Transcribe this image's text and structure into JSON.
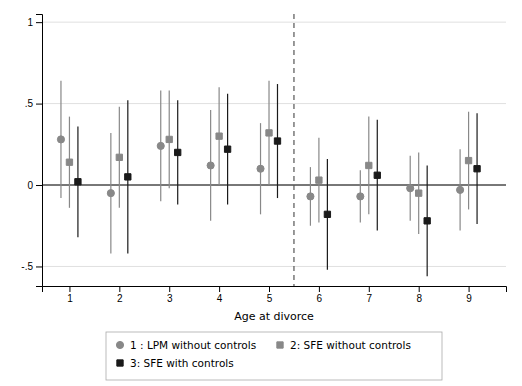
{
  "chart_data": {
    "type": "errorbar",
    "xlabel": "Age at divorce",
    "x": [
      1,
      2,
      3,
      4,
      5,
      6,
      7,
      8,
      9
    ],
    "xlim": [
      0.45,
      9.75
    ],
    "xticks": [
      1,
      2,
      3,
      4,
      5,
      6,
      7,
      8,
      9
    ],
    "ylim": [
      -0.62,
      1.05
    ],
    "yticks": [
      {
        "value": -0.5,
        "label": "-.5"
      },
      0,
      {
        "value": 0.5,
        "label": ".5"
      },
      1
    ],
    "grid": true,
    "legend": "bottom",
    "reference_lines": [
      {
        "axis": "y",
        "value": 0,
        "color": "#000000",
        "line_style": "solid"
      },
      {
        "axis": "x",
        "value": 5.5,
        "color": "#555555",
        "line_style": "dashed"
      }
    ],
    "series": [
      {
        "name": "1 : LPM without controls",
        "color": "#888888",
        "marker": "circle",
        "values": [
          0.28,
          -0.05,
          0.24,
          0.12,
          0.1,
          -0.07,
          -0.07,
          -0.02,
          -0.03
        ],
        "ci_lo": [
          -0.08,
          -0.42,
          -0.1,
          -0.22,
          -0.18,
          -0.25,
          -0.23,
          -0.22,
          -0.28
        ],
        "ci_hi": [
          0.64,
          0.32,
          0.58,
          0.46,
          0.38,
          0.11,
          0.09,
          0.18,
          0.22
        ]
      },
      {
        "name": "2: SFE without controls",
        "color": "#888888",
        "marker": "square",
        "values": [
          0.14,
          0.17,
          0.28,
          0.3,
          0.32,
          0.03,
          0.12,
          -0.05,
          0.15
        ],
        "ci_lo": [
          -0.14,
          -0.14,
          -0.02,
          0.0,
          0.0,
          -0.23,
          -0.18,
          -0.3,
          -0.15
        ],
        "ci_hi": [
          0.42,
          0.48,
          0.58,
          0.6,
          0.64,
          0.29,
          0.42,
          0.2,
          0.45
        ]
      },
      {
        "name": "3: SFE with controls",
        "color": "#1a1a1a",
        "marker": "square",
        "values": [
          0.02,
          0.05,
          0.2,
          0.22,
          0.27,
          -0.18,
          0.06,
          -0.22,
          0.1
        ],
        "ci_lo": [
          -0.32,
          -0.42,
          -0.12,
          -0.12,
          -0.08,
          -0.52,
          -0.28,
          -0.56,
          -0.24
        ],
        "ci_hi": [
          0.36,
          0.52,
          0.52,
          0.56,
          0.62,
          0.16,
          0.4,
          0.12,
          0.44
        ]
      }
    ]
  }
}
